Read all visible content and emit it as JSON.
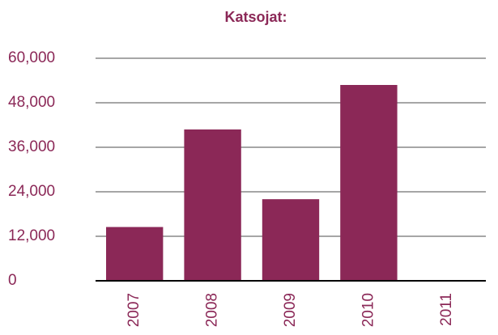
{
  "chart_data": {
    "type": "bar",
    "title": "Katsojat:",
    "categories": [
      "2007",
      "2008",
      "2009",
      "2010",
      "2011"
    ],
    "values": [
      14500,
      40800,
      22000,
      52800,
      null
    ],
    "color": "#8b2857",
    "ylim": [
      0,
      60000
    ],
    "yticks": [
      0,
      {
        "value": 12000,
        "label": "12,000"
      },
      {
        "value": 24000,
        "label": "24,000"
      },
      {
        "value": 36000,
        "label": "36,000"
      },
      {
        "value": 48000,
        "label": "48,000"
      },
      {
        "value": 60000,
        "label": "60,000"
      }
    ],
    "grid": true
  }
}
